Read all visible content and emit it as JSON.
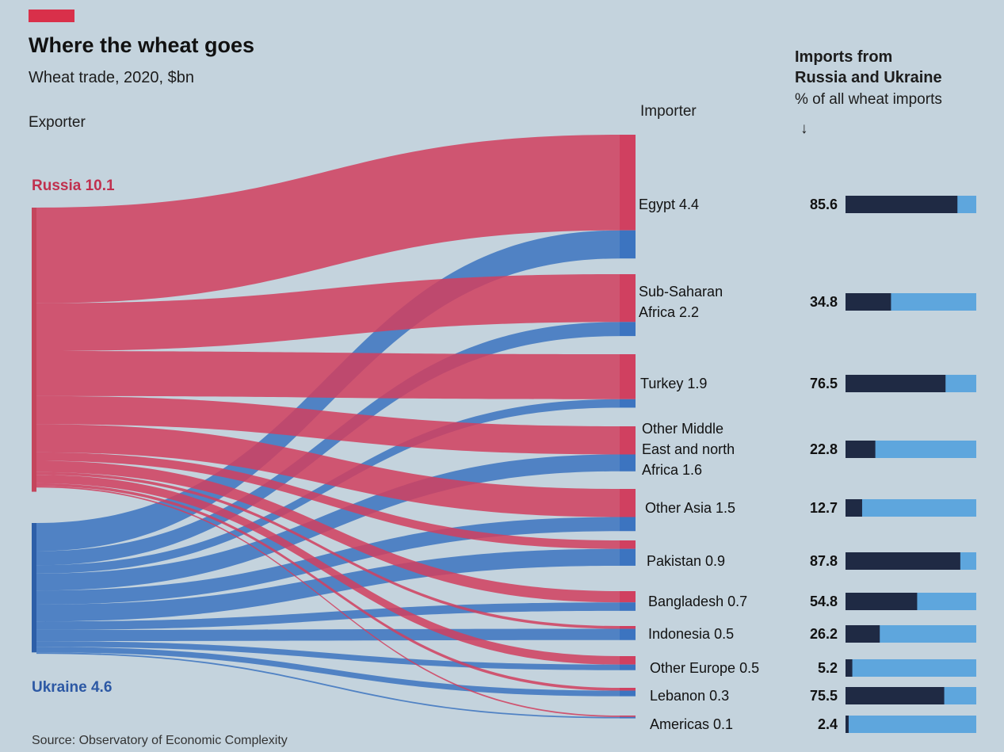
{
  "header": {
    "title": "Where the wheat goes",
    "subtitle": "Wheat trade, 2020, $bn",
    "exporter_label": "Exporter",
    "importer_label": "Importer",
    "imports_title_line1": "Imports from",
    "imports_title_line2": "Russia and Ukraine",
    "imports_subtitle": "% of all wheat imports",
    "arrow": "↓"
  },
  "source": "Source: Observatory of Economic Complexity",
  "colors": {
    "accent": "#d9304a",
    "russia": "#d04060",
    "russia_bar": "#c4455c",
    "ukraine": "#3c74c0",
    "ukraine_bar": "#2e5fa8",
    "import_bar": "#1f2a44",
    "import_track": "#5ea6dd",
    "background": "#c4d3dd"
  },
  "chart_data": [
    {
      "type": "sankey",
      "title": "Where the wheat goes",
      "subtitle": "Wheat trade, 2020, $bn",
      "units": "$bn",
      "exporters": [
        {
          "name": "Russia",
          "label": "Russia 10.1",
          "value": 10.1
        },
        {
          "name": "Ukraine",
          "label": "Ukraine 4.6",
          "value": 4.6
        }
      ],
      "importers": [
        {
          "name": "Egypt",
          "label": "Egypt 4.4",
          "value": 4.4,
          "russia": 3.4,
          "ukraine": 1.0
        },
        {
          "name": "Sub-Saharan Africa",
          "label": "Sub-Saharan Africa 2.2",
          "value": 2.2,
          "russia": 1.7,
          "ukraine": 0.5
        },
        {
          "name": "Turkey",
          "label": "Turkey 1.9",
          "value": 1.9,
          "russia": 1.6,
          "ukraine": 0.3
        },
        {
          "name": "Other Middle East and north Africa",
          "label": "Other Middle East and north Africa 1.6",
          "value": 1.6,
          "russia": 1.0,
          "ukraine": 0.6
        },
        {
          "name": "Other Asia",
          "label": "Other Asia 1.5",
          "value": 1.5,
          "russia": 1.0,
          "ukraine": 0.5
        },
        {
          "name": "Pakistan",
          "label": "Pakistan 0.9",
          "value": 0.9,
          "russia": 0.3,
          "ukraine": 0.6
        },
        {
          "name": "Bangladesh",
          "label": "Bangladesh 0.7",
          "value": 0.7,
          "russia": 0.4,
          "ukraine": 0.3
        },
        {
          "name": "Indonesia",
          "label": "Indonesia 0.5",
          "value": 0.5,
          "russia": 0.1,
          "ukraine": 0.4
        },
        {
          "name": "Other Europe",
          "label": "Other Europe 0.5",
          "value": 0.5,
          "russia": 0.3,
          "ukraine": 0.2
        },
        {
          "name": "Lebanon",
          "label": "Lebanon 0.3",
          "value": 0.3,
          "russia": 0.1,
          "ukraine": 0.2
        },
        {
          "name": "Americas",
          "label": "Americas 0.1",
          "value": 0.1,
          "russia": 0.05,
          "ukraine": 0.05
        }
      ]
    },
    {
      "type": "bar",
      "orientation": "horizontal",
      "title": "Imports from Russia and Ukraine",
      "subtitle": "% of all wheat imports",
      "xlim": [
        0,
        100
      ],
      "categories": [
        "Egypt",
        "Sub-Saharan Africa",
        "Turkey",
        "Other Middle East and north Africa",
        "Other Asia",
        "Pakistan",
        "Bangladesh",
        "Indonesia",
        "Other Europe",
        "Lebanon",
        "Americas"
      ],
      "values": [
        85.6,
        34.8,
        76.5,
        22.8,
        12.7,
        87.8,
        54.8,
        26.2,
        5.2,
        75.5,
        2.4
      ],
      "value_labels": [
        "85.6",
        "34.8",
        "76.5",
        "22.8",
        "12.7",
        "87.8",
        "54.8",
        "26.2",
        "5.2",
        "75.5",
        "2.4"
      ]
    }
  ]
}
